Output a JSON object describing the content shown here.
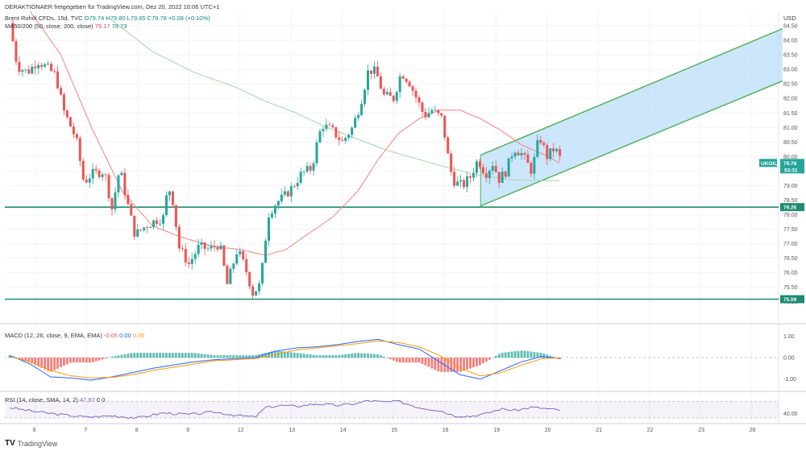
{
  "header": {
    "publisher": "DERAKTIONAER freigegeben für TradingView.com, Dez 20, 2022 10:06 UTC+1",
    "symbol_line": {
      "instrument": "Brent Rohöl CFDs, 15d, TVC",
      "ohlc": "O79.74  H79.80  L79.65  C79.78  +0.08 (+0.10%)"
    },
    "ma_line": {
      "label": "MA50/200 (50, close, 200, close)",
      "v1": "79.17",
      "v2": "79.73"
    }
  },
  "macd_legend": {
    "label": "MACD (12, 26, close, 9, EMA, EMA)",
    "v1": "-0.05",
    "v2": "0.00",
    "v3": "0.05"
  },
  "rsi_legend": {
    "label": "RSI (14, close, SMA, 14, 2)",
    "v1": "47.97",
    "v2": "0",
    "v3": "0"
  },
  "currency": "USD",
  "brand": "TradingView",
  "colors": {
    "up": "#26a69a",
    "down": "#ef5350",
    "ma50": "#f0847e",
    "ma200": "#a5d6a7",
    "channel": "#4caf50",
    "channel_fill": "#bbdefb",
    "hline": "#1e8c70",
    "macd": "#2962ff",
    "signal": "#ff9800",
    "rsi": "#7e57c2"
  },
  "chart_data": [
    {
      "type": "candlestick",
      "title": "Brent Rohöl CFDs, 15d, TVC",
      "ylim": [
        74.3,
        85.0
      ],
      "y_ticks": [
        "84.50",
        "84.00",
        "83.50",
        "83.00",
        "82.50",
        "82.00",
        "81.50",
        "81.00",
        "80.50",
        "80.00",
        "79.50",
        "79.00",
        "78.50",
        "78.00",
        "77.50",
        "77.00",
        "76.50",
        "76.00",
        "75.50",
        "75.00"
      ],
      "x_ticks": [
        "6",
        "7",
        "8",
        "9",
        "12",
        "13",
        "14",
        "15",
        "16",
        "19",
        "20",
        "21",
        "22",
        "23",
        "26"
      ],
      "x_tick_days": [
        0.5,
        1.5,
        2.5,
        3.5,
        4.5,
        5.5,
        6.5,
        7.5,
        8.5,
        9.5,
        10.5,
        11.5,
        12.5,
        13.5,
        14.5
      ],
      "price_path": [
        [
          0.0,
          84.6
        ],
        [
          0.15,
          83.1
        ],
        [
          0.35,
          82.9
        ],
        [
          0.55,
          83.3
        ],
        [
          0.7,
          83.1
        ],
        [
          0.9,
          82.8
        ],
        [
          1.05,
          81.6
        ],
        [
          1.3,
          80.6
        ],
        [
          1.45,
          79.1
        ],
        [
          1.6,
          79.4
        ],
        [
          1.85,
          79.5
        ],
        [
          2.0,
          78.2
        ],
        [
          2.15,
          79.6
        ],
        [
          2.3,
          78.4
        ],
        [
          2.45,
          77.3
        ],
        [
          2.65,
          77.6
        ],
        [
          2.85,
          77.8
        ],
        [
          3.0,
          77.9
        ],
        [
          3.1,
          79.0
        ],
        [
          3.2,
          78.4
        ],
        [
          3.3,
          76.9
        ],
        [
          3.5,
          76.3
        ],
        [
          3.7,
          76.9
        ],
        [
          3.9,
          76.8
        ],
        [
          4.1,
          77.0
        ],
        [
          4.25,
          75.6
        ],
        [
          4.45,
          76.8
        ],
        [
          4.6,
          76.2
        ],
        [
          4.75,
          75.3
        ],
        [
          4.9,
          75.6
        ],
        [
          5.05,
          78.0
        ],
        [
          5.2,
          78.4
        ],
        [
          5.35,
          78.6
        ],
        [
          5.5,
          78.9
        ],
        [
          5.7,
          79.4
        ],
        [
          5.9,
          79.6
        ],
        [
          6.0,
          80.4
        ],
        [
          6.1,
          81.1
        ],
        [
          6.3,
          80.9
        ],
        [
          6.5,
          80.5
        ],
        [
          6.7,
          81.0
        ],
        [
          6.85,
          81.8
        ],
        [
          7.0,
          82.9
        ],
        [
          7.1,
          83.0
        ],
        [
          7.2,
          82.7
        ],
        [
          7.3,
          82.1
        ],
        [
          7.5,
          82.0
        ],
        [
          7.65,
          82.9
        ],
        [
          7.8,
          82.6
        ],
        [
          7.95,
          82.0
        ],
        [
          8.1,
          81.4
        ],
        [
          8.25,
          81.6
        ],
        [
          8.45,
          81.3
        ],
        [
          8.6,
          79.6
        ],
        [
          8.7,
          79.1
        ],
        [
          8.85,
          79.0
        ],
        [
          9.0,
          79.3
        ],
        [
          9.15,
          79.9
        ],
        [
          9.3,
          79.4
        ],
        [
          9.45,
          79.8
        ],
        [
          9.55,
          79.2
        ],
        [
          9.7,
          79.5
        ],
        [
          9.85,
          80.3
        ],
        [
          10.0,
          80.1
        ],
        [
          10.2,
          79.5
        ],
        [
          10.35,
          80.7
        ],
        [
          10.5,
          80.0
        ],
        [
          10.65,
          80.3
        ],
        [
          10.8,
          79.78
        ]
      ],
      "series": [
        {
          "name": "MA50",
          "values_path": [
            [
              0.4,
              85.0
            ],
            [
              1.0,
              83.5
            ],
            [
              1.6,
              81.0
            ],
            [
              2.2,
              78.8
            ],
            [
              2.8,
              77.6
            ],
            [
              3.4,
              77.2
            ],
            [
              4.0,
              76.9
            ],
            [
              4.5,
              76.8
            ],
            [
              5.0,
              76.6
            ],
            [
              5.4,
              76.8
            ],
            [
              5.8,
              77.3
            ],
            [
              6.3,
              77.9
            ],
            [
              6.8,
              78.8
            ],
            [
              7.2,
              79.9
            ],
            [
              7.6,
              80.8
            ],
            [
              8.0,
              81.3
            ],
            [
              8.4,
              81.6
            ],
            [
              8.8,
              81.6
            ],
            [
              9.2,
              81.3
            ],
            [
              9.6,
              80.9
            ],
            [
              10.0,
              80.4
            ],
            [
              10.4,
              80.1
            ],
            [
              10.8,
              79.73
            ]
          ]
        },
        {
          "name": "MA200",
          "values_path": [
            [
              2.0,
              84.7
            ],
            [
              2.8,
              83.6
            ],
            [
              3.6,
              82.9
            ],
            [
              4.4,
              82.4
            ],
            [
              5.0,
              81.9
            ],
            [
              5.6,
              81.5
            ],
            [
              6.2,
              81.0
            ],
            [
              6.8,
              80.6
            ],
            [
              7.4,
              80.2
            ],
            [
              8.0,
              79.9
            ],
            [
              8.6,
              79.6
            ],
            [
              9.2,
              79.35
            ],
            [
              9.8,
              79.2
            ],
            [
              10.4,
              79.17
            ],
            [
              10.8,
              79.17
            ]
          ]
        }
      ],
      "channel": {
        "lower": [
          [
            9.2,
            78.3
          ],
          [
            15.1,
            82.6
          ]
        ],
        "upper": [
          [
            9.2,
            80.05
          ],
          [
            15.1,
            84.4
          ]
        ]
      },
      "horizontal_lines": [
        78.26,
        75.09
      ],
      "price_badges": [
        {
          "label": "UKOIL",
          "value": "79.78",
          "sub": "53:31",
          "y": 79.78,
          "color": "#26a69a"
        },
        {
          "label": "",
          "value": "78.26",
          "sub": "",
          "y": 78.26,
          "color": "#1e8c70"
        },
        {
          "label": "",
          "value": "75.09",
          "sub": "",
          "y": 75.09,
          "color": "#1e8c70"
        }
      ]
    },
    {
      "type": "histogram+line",
      "title": "MACD (12, 26, close, 9, EMA, EMA)",
      "ylim": [
        -1.5,
        1.5
      ],
      "y_ticks": [
        "1.00",
        "0.00",
        "-1.00"
      ],
      "y_tick_values": [
        1.0,
        0.0,
        -1.0
      ],
      "series": [
        {
          "name": "MACD",
          "values_path": [
            [
              0.0,
              0.1
            ],
            [
              0.4,
              -0.3
            ],
            [
              0.8,
              -0.9
            ],
            [
              1.2,
              -0.95
            ],
            [
              1.6,
              -1.05
            ],
            [
              2.0,
              -0.9
            ],
            [
              2.4,
              -0.7
            ],
            [
              2.8,
              -0.5
            ],
            [
              3.2,
              -0.35
            ],
            [
              3.6,
              -0.2
            ],
            [
              4.0,
              -0.1
            ],
            [
              4.4,
              -0.05
            ],
            [
              4.8,
              0.0
            ],
            [
              5.2,
              0.3
            ],
            [
              5.6,
              0.45
            ],
            [
              6.0,
              0.5
            ],
            [
              6.4,
              0.6
            ],
            [
              6.8,
              0.75
            ],
            [
              7.2,
              0.85
            ],
            [
              7.6,
              0.6
            ],
            [
              8.0,
              0.4
            ],
            [
              8.4,
              -0.2
            ],
            [
              8.8,
              -0.8
            ],
            [
              9.2,
              -1.0
            ],
            [
              9.6,
              -0.6
            ],
            [
              10.0,
              -0.2
            ],
            [
              10.4,
              0.05
            ],
            [
              10.8,
              -0.05
            ]
          ]
        },
        {
          "name": "Signal",
          "values_path": [
            [
              0.0,
              0.05
            ],
            [
              0.4,
              -0.2
            ],
            [
              0.8,
              -0.6
            ],
            [
              1.2,
              -0.85
            ],
            [
              1.6,
              -0.95
            ],
            [
              2.0,
              -0.92
            ],
            [
              2.4,
              -0.8
            ],
            [
              2.8,
              -0.6
            ],
            [
              3.2,
              -0.45
            ],
            [
              3.6,
              -0.3
            ],
            [
              4.0,
              -0.15
            ],
            [
              4.4,
              -0.1
            ],
            [
              4.8,
              -0.05
            ],
            [
              5.2,
              0.15
            ],
            [
              5.6,
              0.35
            ],
            [
              6.0,
              0.45
            ],
            [
              6.4,
              0.55
            ],
            [
              6.8,
              0.65
            ],
            [
              7.2,
              0.78
            ],
            [
              7.6,
              0.7
            ],
            [
              8.0,
              0.5
            ],
            [
              8.4,
              0.1
            ],
            [
              8.8,
              -0.5
            ],
            [
              9.2,
              -0.85
            ],
            [
              9.6,
              -0.7
            ],
            [
              10.0,
              -0.35
            ],
            [
              10.4,
              -0.05
            ],
            [
              10.8,
              0.0
            ]
          ]
        }
      ]
    },
    {
      "type": "line",
      "title": "RSI (14, close, SMA, 14, 2)",
      "ylim": [
        20,
        90
      ],
      "y_ticks": [
        "40.00"
      ],
      "y_tick_values": [
        40.0
      ],
      "band": [
        30,
        70
      ],
      "series": [
        {
          "name": "RSI",
          "values_path": [
            [
              0.0,
              55
            ],
            [
              0.5,
              45
            ],
            [
              1.0,
              38
            ],
            [
              1.5,
              32
            ],
            [
              2.0,
              35
            ],
            [
              2.5,
              30
            ],
            [
              3.0,
              42
            ],
            [
              3.5,
              38
            ],
            [
              4.0,
              44
            ],
            [
              4.5,
              35
            ],
            [
              4.8,
              32
            ],
            [
              5.0,
              55
            ],
            [
              5.3,
              60
            ],
            [
              5.6,
              58
            ],
            [
              6.0,
              64
            ],
            [
              6.4,
              60
            ],
            [
              6.8,
              65
            ],
            [
              7.0,
              72
            ],
            [
              7.3,
              68
            ],
            [
              7.6,
              70
            ],
            [
              8.0,
              55
            ],
            [
              8.4,
              48
            ],
            [
              8.7,
              35
            ],
            [
              9.0,
              34
            ],
            [
              9.3,
              40
            ],
            [
              9.6,
              52
            ],
            [
              9.9,
              48
            ],
            [
              10.2,
              56
            ],
            [
              10.5,
              52
            ],
            [
              10.8,
              47.97
            ]
          ]
        }
      ]
    }
  ]
}
